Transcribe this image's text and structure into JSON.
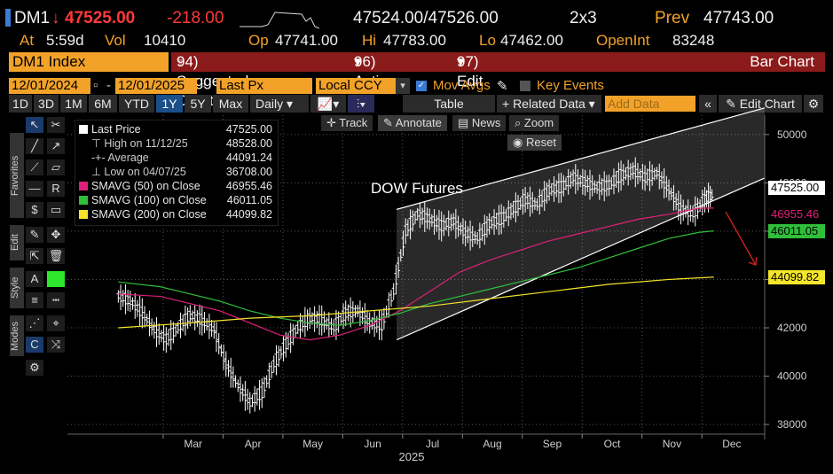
{
  "header": {
    "ticker": "DM1",
    "last": "47525.00",
    "change": "-218.00",
    "bid_ask": "47524.00/47526.00",
    "size": "2x3",
    "prev_label": "Prev",
    "prev": "47743.00",
    "at_label": "At",
    "at_time": "5:59d",
    "vol_label": "Vol",
    "vol": "10410",
    "op_label": "Op",
    "op": "47741.00",
    "hi_label": "Hi",
    "hi": "47783.00",
    "lo_label": "Lo",
    "lo": "47462.00",
    "oi_label": "OpenInt",
    "oi": "83248"
  },
  "menubar": {
    "index_label": "DM1 Index",
    "suggested": "94) Suggested Charts",
    "actions": "96) Actions",
    "edit": "97) Edit",
    "bar_chart": "Bar Chart"
  },
  "inputs": {
    "start_date": "12/01/2024",
    "end_date": "12/01/2025",
    "price_field": "Last Px",
    "currency": "Local CCY",
    "mov_avgs": "Mov Avgs",
    "key_events": "Key Events"
  },
  "periods": [
    "1D",
    "3D",
    "1M",
    "6M",
    "YTD",
    "1Y",
    "5Y",
    "Max"
  ],
  "selected_period": "1Y",
  "toolbar": {
    "frequency": "Daily",
    "table": "Table",
    "related": "+ Related Data",
    "add_data_placeholder": "Add Data",
    "edit_chart": "Edit Chart"
  },
  "sidebar_tabs": [
    "Favorites",
    "Edit",
    "Style",
    "Modes"
  ],
  "chart_controls": {
    "track": "Track",
    "annotate": "Annotate",
    "news": "News",
    "zoom": "Zoom",
    "reset": "Reset"
  },
  "legend": [
    {
      "label": "Last Price",
      "value": "47525.00",
      "color": "#ffffff"
    },
    {
      "label": "High on 11/12/25",
      "value": "48528.00",
      "color": ""
    },
    {
      "label": "Average",
      "value": "44091.24",
      "color": ""
    },
    {
      "label": "Low on 04/07/25",
      "value": "36708.00",
      "color": ""
    },
    {
      "label": "SMAVG (50)  on Close",
      "value": "46955.46",
      "color": "#e0207a"
    },
    {
      "label": "SMAVG (100)  on Close",
      "value": "46011.05",
      "color": "#2fbf3a"
    },
    {
      "label": "SMAVG (200)  on Close",
      "value": "44099.82",
      "color": "#f5e52a"
    }
  ],
  "chart_data": {
    "type": "line",
    "title": "DOW Futures",
    "xlabel": "2025",
    "ylabel": "",
    "ylim": [
      37600,
      50800
    ],
    "y_ticks": [
      38000,
      40000,
      42000,
      44000,
      46000,
      48000,
      50000
    ],
    "x_month_labels": [
      "Mar",
      "Apr",
      "May",
      "Jun",
      "Jul",
      "Aug",
      "Sep",
      "Oct",
      "Nov",
      "Dec"
    ],
    "x_month_index": [
      2.55,
      3.55,
      4.55,
      5.55,
      6.55,
      7.55,
      8.55,
      9.55,
      10.55,
      11.55
    ],
    "x_range": [
      0.45,
      12.1
    ],
    "price_tags": [
      {
        "value": "47525.00",
        "y": 47525,
        "bg": "#ffffff",
        "fg": "#000000"
      },
      {
        "value": "46955.46",
        "y": 46955,
        "bg": "#000000",
        "fg": "#e0207a"
      },
      {
        "value": "46011.05",
        "y": 46011,
        "bg": "#2fbf3a",
        "fg": "#000000"
      },
      {
        "value": "44099.82",
        "y": 44099,
        "bg": "#f5e52a",
        "fg": "#000000"
      }
    ],
    "series": [
      {
        "name": "Last Price",
        "color": "#ffffff",
        "x": [
          1.3,
          1.5,
          1.7,
          1.9,
          2.1,
          2.3,
          2.5,
          2.7,
          2.9,
          3.1,
          3.3,
          3.5,
          3.7,
          3.9,
          4.1,
          4.3,
          4.5,
          4.7,
          4.9,
          5.1,
          5.3,
          5.5,
          5.7,
          5.9,
          6.1,
          6.3,
          6.5,
          6.7,
          6.9,
          7.1,
          7.3,
          7.5,
          7.7,
          7.9,
          8.1,
          8.3,
          8.5,
          8.7,
          8.9,
          9.1,
          9.3,
          9.5,
          9.7,
          9.9,
          10.1,
          10.3,
          10.5,
          10.7,
          10.9,
          11.1,
          11.25
        ],
        "y": [
          43300,
          43100,
          42600,
          41900,
          41500,
          42000,
          42500,
          42300,
          41900,
          40500,
          39600,
          38900,
          39300,
          40500,
          41300,
          42000,
          42400,
          42300,
          42000,
          42600,
          42700,
          42200,
          42100,
          43500,
          46000,
          46700,
          46500,
          46200,
          46400,
          45900,
          45700,
          46300,
          46500,
          46900,
          47300,
          47100,
          47700,
          47800,
          48200,
          48000,
          47800,
          47900,
          48300,
          48500,
          48200,
          48400,
          47700,
          46900,
          46700,
          47300,
          47525
        ]
      },
      {
        "name": "SMAVG (50)",
        "color": "#e0207a",
        "x": [
          1.3,
          2,
          2.5,
          3,
          3.5,
          4,
          4.5,
          5,
          5.5,
          6,
          6.5,
          7,
          7.5,
          8,
          8.5,
          9,
          9.5,
          10,
          10.5,
          11,
          11.25
        ],
        "y": [
          43400,
          43300,
          43000,
          42700,
          42200,
          41700,
          41500,
          41700,
          42100,
          42700,
          43500,
          44300,
          44800,
          45200,
          45600,
          45900,
          46200,
          46500,
          46700,
          46950,
          46955
        ]
      },
      {
        "name": "SMAVG (100)",
        "color": "#2fbf3a",
        "x": [
          1.3,
          2,
          2.5,
          3,
          3.5,
          4,
          4.5,
          5,
          5.5,
          6,
          6.5,
          7,
          7.5,
          8,
          8.5,
          9,
          9.5,
          10,
          10.5,
          11,
          11.25
        ],
        "y": [
          43900,
          43700,
          43400,
          43100,
          42700,
          42400,
          42200,
          42100,
          42300,
          42600,
          43000,
          43300,
          43600,
          43900,
          44200,
          44500,
          44900,
          45300,
          45700,
          45950,
          46011
        ]
      },
      {
        "name": "SMAVG (200)",
        "color": "#f5e52a",
        "x": [
          1.3,
          2.5,
          3.5,
          4.5,
          5.5,
          6.5,
          7.5,
          8.5,
          9.5,
          10.5,
          11.25
        ],
        "y": [
          42000,
          42200,
          42400,
          42500,
          42700,
          42900,
          43200,
          43500,
          43800,
          44000,
          44099
        ]
      }
    ],
    "channel": {
      "upper_start": [
        5.95,
        46900
      ],
      "upper_end": [
        12.1,
        51100
      ],
      "lower_start": [
        5.95,
        41500
      ],
      "lower_end": [
        12.1,
        48200
      ]
    },
    "arrow": {
      "from": [
        11.45,
        46800
      ],
      "to": [
        11.95,
        44600
      ],
      "color": "#c02020"
    }
  }
}
